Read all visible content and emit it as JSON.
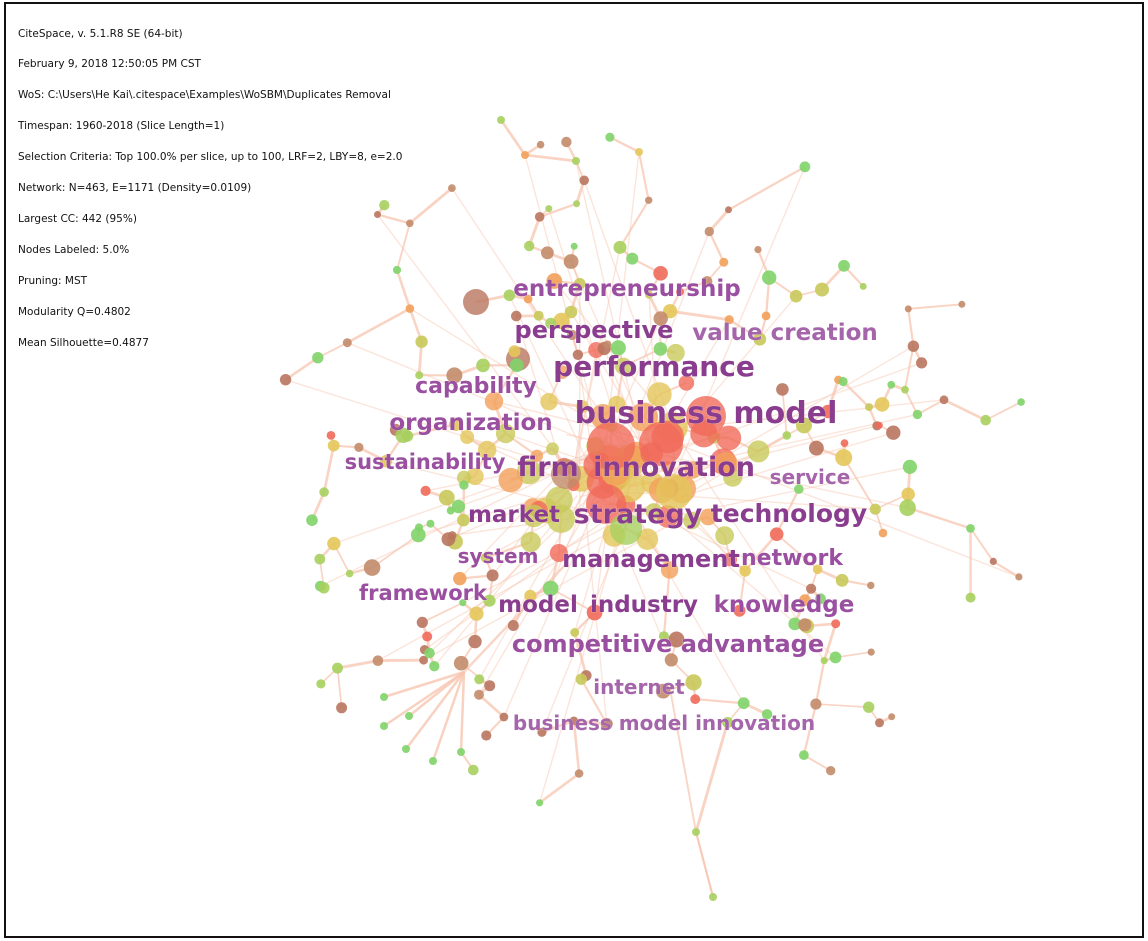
{
  "info": {
    "lines": [
      "CiteSpace, v. 5.1.R8 SE (64-bit)",
      "February 9, 2018 12:50:05 PM CST",
      "WoS: C:\\Users\\He Kai\\.citespace\\Examples\\WoSBM\\Duplicates Removal",
      "Timespan: 1960-2018 (Slice Length=1)",
      "Selection Criteria: Top 100.0% per slice, up to 100, LRF=2, LBY=8, e=2.0",
      "Network: N=463, E=1171 (Density=0.0109)",
      "Largest CC: 442 (95%)",
      "Nodes Labeled: 5.0%",
      "Pruning: MST",
      "Modularity Q=0.4802",
      "Mean Silhouette=0.4877"
    ]
  },
  "colors": {
    "label_dark": "#8a3d8f",
    "label_mid": "#9a4fa0",
    "label_light": "#a565ab",
    "link": "#f7c6b0",
    "node_palette": [
      "#f06a5a",
      "#f2a05a",
      "#e4c65a",
      "#c8c95a",
      "#a7cf5e",
      "#7fd46a",
      "#c28b6a",
      "#b9765f"
    ]
  },
  "keywords": [
    "business model",
    "innovation",
    "performance",
    "strategy",
    "firm",
    "entrepreneurship",
    "perspective",
    "value creation",
    "capability",
    "organization",
    "sustainability",
    "service",
    "market",
    "technology",
    "management",
    "network",
    "system",
    "framework",
    "model",
    "industry",
    "knowledge",
    "competitive advantage",
    "internet",
    "business model innovation"
  ]
}
